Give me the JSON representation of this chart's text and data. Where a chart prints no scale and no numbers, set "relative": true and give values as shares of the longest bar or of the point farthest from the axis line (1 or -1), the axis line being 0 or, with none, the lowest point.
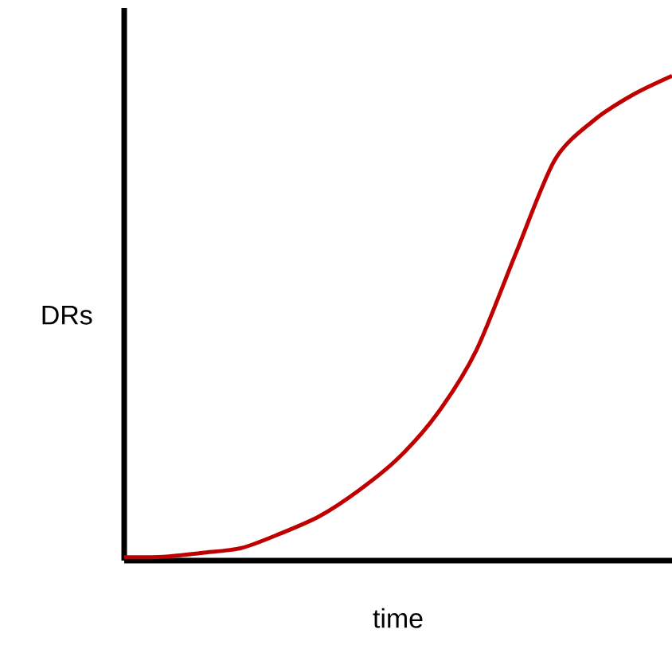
{
  "chart_data": {
    "type": "line",
    "relative": true,
    "xlabel": "time",
    "ylabel": "DRs",
    "categories": [
      null,
      null,
      null,
      null,
      null,
      null,
      null,
      null,
      null,
      null,
      null,
      null,
      null,
      null,
      null
    ],
    "values": [
      0.007,
      0.008,
      0.016,
      0.026,
      0.056,
      0.092,
      0.145,
      0.211,
      0.303,
      0.434,
      0.632,
      0.826,
      0.908,
      0.961,
      1
    ],
    "color": "#c00000"
  }
}
